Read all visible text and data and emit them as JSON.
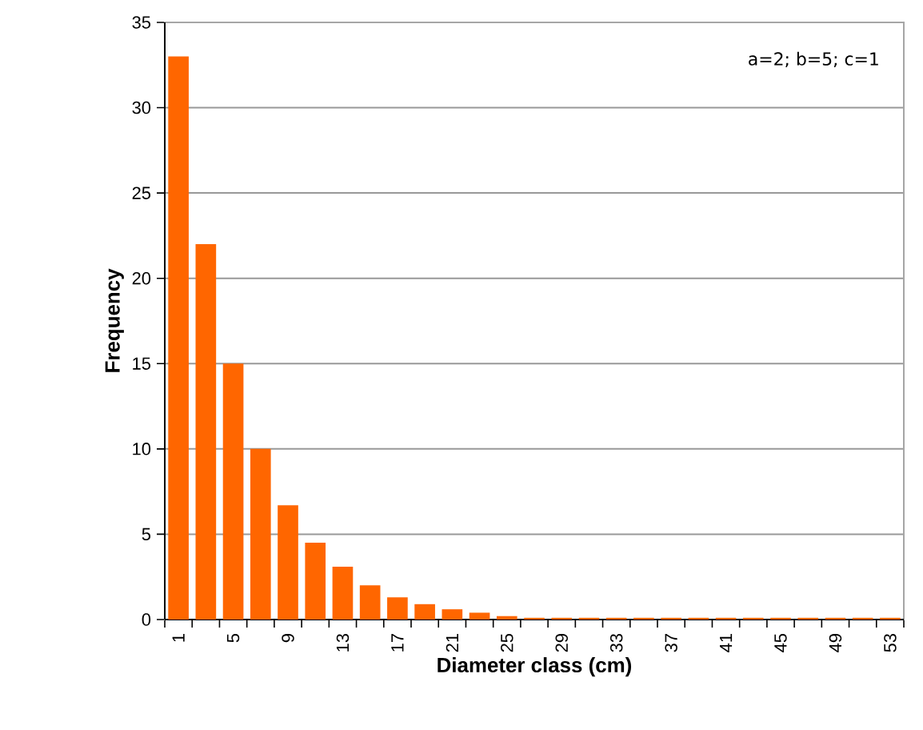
{
  "chart_data": {
    "type": "bar",
    "xlabel": "Diameter class (cm)",
    "ylabel": "Frequency",
    "annotations": [
      "a=2; b=5; c=1"
    ],
    "categories": [
      "1",
      null,
      "5",
      null,
      "9",
      null,
      "13",
      null,
      "17",
      null,
      "21",
      null,
      "25",
      null,
      "29",
      null,
      "33",
      null,
      "37",
      null,
      "41",
      null,
      "45",
      null,
      "49",
      null,
      "53"
    ],
    "values": [
      33,
      22,
      15,
      10,
      6.7,
      4.5,
      3.1,
      2,
      1.3,
      0.9,
      0.6,
      0.4,
      0.2,
      0.1,
      0.1,
      0.1,
      0.1,
      0.1,
      0.1,
      0.1,
      0.1,
      0.1,
      0.1,
      0.1,
      0.1,
      0.1,
      0.1
    ],
    "color": "#ff6600",
    "ylim": [
      0,
      35
    ],
    "yticks": [
      0,
      5,
      10,
      15,
      20,
      25,
      30,
      35
    ],
    "grid": "y"
  }
}
